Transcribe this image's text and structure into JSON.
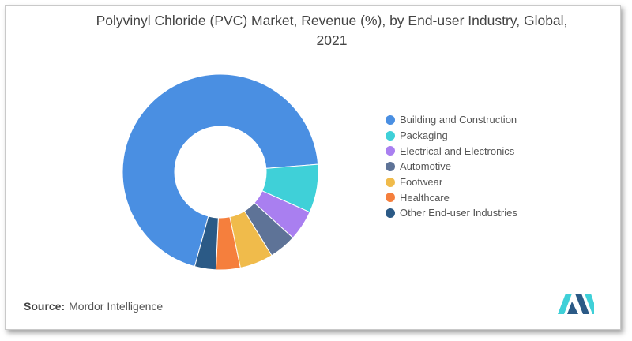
{
  "chart_data": {
    "type": "pie",
    "variant": "donut",
    "title": "Polyvinyl Chloride (PVC) Market, Revenue (%), by End-user Industry, Global, 2021",
    "title_lines": [
      "Polyvinyl Chloride (PVC) Market, Revenue (%), by End-user Industry, Global,",
      "2021"
    ],
    "legend_position": "right",
    "slices": [
      {
        "label": "Building and Construction",
        "value": 69.5,
        "color": "#4a8fe2"
      },
      {
        "label": "Packaging",
        "value": 8.0,
        "color": "#3fd0d8"
      },
      {
        "label": "Electrical and Electronics",
        "value": 5.0,
        "color": "#a97ff0"
      },
      {
        "label": "Automotive",
        "value": 4.5,
        "color": "#5e7397"
      },
      {
        "label": "Footwear",
        "value": 5.5,
        "color": "#f0bb4b"
      },
      {
        "label": "Healthcare",
        "value": 4.0,
        "color": "#f57f3d"
      },
      {
        "label": "Other End-user Industries",
        "value": 3.5,
        "color": "#2b5a86"
      }
    ]
  },
  "source": {
    "label": "Source:",
    "text": "Mordor Intelligence"
  },
  "logo": {
    "icon": "mordor-intelligence-logo",
    "colors": [
      "#3fd0d8",
      "#2b5a86"
    ]
  }
}
